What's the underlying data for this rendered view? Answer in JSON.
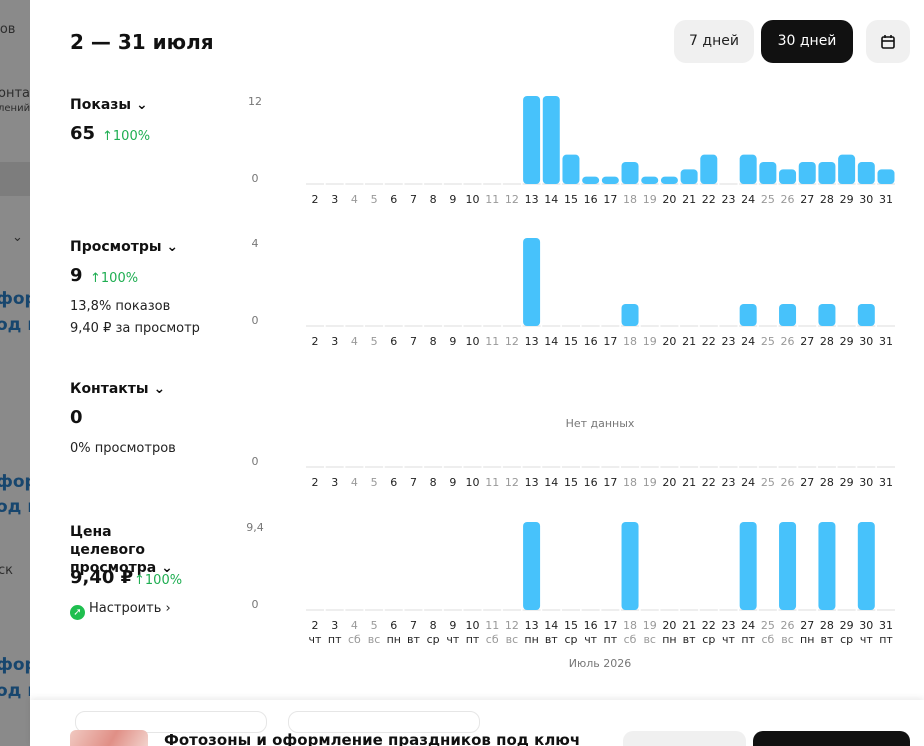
{
  "background": {
    "fragments": [
      "ков",
      "онта",
      "лений",
      "фор",
      "од к",
      "фор",
      "од к",
      "ск",
      "фор",
      "од к"
    ]
  },
  "header": {
    "title": "2 — 31 июля",
    "buttons": [
      "7 дней",
      "30 дней"
    ]
  },
  "metrics": [
    {
      "title": "Показы",
      "value": "65",
      "change": "100%"
    },
    {
      "title": "Просмотры",
      "value": "9",
      "change": "100%",
      "notes": [
        "13,8% показов",
        "9,40 ₽ за просмотр"
      ]
    },
    {
      "title": "Контакты",
      "value": "0",
      "notes": [
        "0% просмотров"
      ]
    },
    {
      "title": "Цена целевого просмотра",
      "value": "9,40 ₽",
      "change": "100%",
      "link": "Настроить"
    }
  ],
  "chart_data": [
    {
      "type": "bar",
      "color": "#47c2fb",
      "categories": [
        "2",
        "3",
        "4",
        "5",
        "6",
        "7",
        "8",
        "9",
        "10",
        "11",
        "12",
        "13",
        "14",
        "15",
        "16",
        "17",
        "18",
        "19",
        "20",
        "21",
        "22",
        "23",
        "24",
        "25",
        "26",
        "27",
        "28",
        "29",
        "30",
        "31"
      ],
      "x_tick_colors": [
        "#222",
        "#222",
        "#999",
        "#999",
        "#222",
        "#222",
        "#222",
        "#222",
        "#222",
        "#999",
        "#999",
        "#222",
        "#222",
        "#222",
        "#222",
        "#222",
        "#999",
        "#999",
        "#222",
        "#222",
        "#222",
        "#222",
        "#222",
        "#999",
        "#999",
        "#222",
        "#222",
        "#222",
        "#222",
        "#222"
      ],
      "values": [
        0,
        0,
        0,
        0,
        0,
        0,
        0,
        0,
        0,
        0,
        0,
        12,
        12,
        4,
        1,
        1,
        3,
        1,
        1,
        2,
        4,
        0,
        4,
        3,
        2,
        3,
        3,
        4,
        3,
        2
      ],
      "ylim": [
        0,
        12
      ],
      "yticks": [
        0,
        12
      ]
    },
    {
      "type": "bar",
      "color": "#47c2fb",
      "categories": [
        "2",
        "3",
        "4",
        "5",
        "6",
        "7",
        "8",
        "9",
        "10",
        "11",
        "12",
        "13",
        "14",
        "15",
        "16",
        "17",
        "18",
        "19",
        "20",
        "21",
        "22",
        "23",
        "24",
        "25",
        "26",
        "27",
        "28",
        "29",
        "30",
        "31"
      ],
      "x_tick_colors": [
        "#222",
        "#222",
        "#999",
        "#999",
        "#222",
        "#222",
        "#222",
        "#222",
        "#222",
        "#999",
        "#999",
        "#222",
        "#222",
        "#222",
        "#222",
        "#222",
        "#999",
        "#999",
        "#222",
        "#222",
        "#222",
        "#222",
        "#222",
        "#999",
        "#999",
        "#222",
        "#222",
        "#222",
        "#222",
        "#222"
      ],
      "values": [
        0,
        0,
        0,
        0,
        0,
        0,
        0,
        0,
        0,
        0,
        0,
        4,
        0,
        0,
        0,
        0,
        1,
        0,
        0,
        0,
        0,
        0,
        1,
        0,
        1,
        0,
        1,
        0,
        1,
        0
      ],
      "ylim": [
        0,
        4
      ],
      "yticks": [
        0,
        4
      ]
    },
    {
      "type": "empty",
      "annotation": "Нет данных",
      "categories": [
        "2",
        "3",
        "4",
        "5",
        "6",
        "7",
        "8",
        "9",
        "10",
        "11",
        "12",
        "13",
        "14",
        "15",
        "16",
        "17",
        "18",
        "19",
        "20",
        "21",
        "22",
        "23",
        "24",
        "25",
        "26",
        "27",
        "28",
        "29",
        "30",
        "31"
      ],
      "x_tick_colors": [
        "#222",
        "#222",
        "#999",
        "#999",
        "#222",
        "#222",
        "#222",
        "#222",
        "#222",
        "#999",
        "#999",
        "#222",
        "#222",
        "#222",
        "#222",
        "#222",
        "#999",
        "#999",
        "#222",
        "#222",
        "#222",
        "#222",
        "#222",
        "#999",
        "#999",
        "#222",
        "#222",
        "#222",
        "#222",
        "#222"
      ],
      "yticks": [
        0
      ]
    },
    {
      "type": "bar",
      "color": "#47c2fb",
      "x_label": "Июль 2026",
      "categories": [
        "2",
        "3",
        "4",
        "5",
        "6",
        "7",
        "8",
        "9",
        "10",
        "11",
        "12",
        "13",
        "14",
        "15",
        "16",
        "17",
        "18",
        "19",
        "20",
        "21",
        "22",
        "23",
        "24",
        "25",
        "26",
        "27",
        "28",
        "29",
        "30",
        "31"
      ],
      "weekdays": [
        "чт",
        "пт",
        "сб",
        "вс",
        "пн",
        "вт",
        "ср",
        "чт",
        "пт",
        "сб",
        "вс",
        "пн",
        "вт",
        "ср",
        "чт",
        "пт",
        "сб",
        "вс",
        "пн",
        "вт",
        "ср",
        "чт",
        "пт",
        "сб",
        "вс",
        "пн",
        "вт",
        "ср",
        "чт",
        "пт"
      ],
      "x_tick_colors": [
        "#222",
        "#222",
        "#999",
        "#999",
        "#222",
        "#222",
        "#222",
        "#222",
        "#222",
        "#999",
        "#999",
        "#222",
        "#222",
        "#222",
        "#222",
        "#222",
        "#999",
        "#999",
        "#222",
        "#222",
        "#222",
        "#222",
        "#222",
        "#999",
        "#999",
        "#222",
        "#222",
        "#222",
        "#222",
        "#222"
      ],
      "values": [
        0,
        0,
        0,
        0,
        0,
        0,
        0,
        0,
        0,
        0,
        0,
        9.4,
        0,
        0,
        0,
        0,
        9.4,
        0,
        0,
        0,
        0,
        0,
        9.4,
        0,
        9.4,
        0,
        9.4,
        0,
        9.4,
        0
      ],
      "ylim": [
        0,
        9.4
      ],
      "yticks": [
        0,
        {
          "value": 9.4,
          "label": "9,4"
        }
      ]
    }
  ],
  "footer": {
    "title": "Фотозоны и оформление праздников под ключ"
  }
}
